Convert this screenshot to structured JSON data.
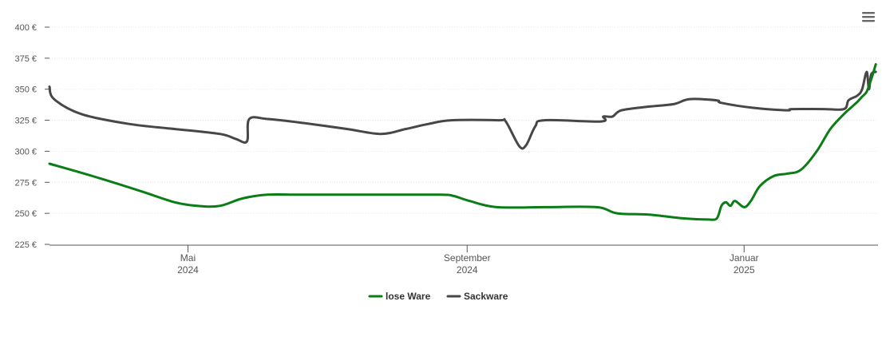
{
  "menu": {
    "icon": "hamburger-menu-icon"
  },
  "chart_data": {
    "type": "line",
    "title": "",
    "xlabel": "",
    "ylabel": "",
    "ylim": [
      225,
      400
    ],
    "yticks": [
      225,
      250,
      275,
      300,
      325,
      350,
      375,
      400
    ],
    "ytick_labels": [
      "225 €",
      "250 €",
      "275 €",
      "300 €",
      "325 €",
      "350 €",
      "375 €",
      "400 €"
    ],
    "xlim": [
      "2024-03-01",
      "2025-02-28"
    ],
    "xticks": [
      {
        "date": "2024-05-01",
        "line1": "Mai",
        "line2": "2024"
      },
      {
        "date": "2024-09-01",
        "line1": "September",
        "line2": "2024"
      },
      {
        "date": "2025-01-01",
        "line1": "Januar",
        "line2": "2025"
      }
    ],
    "grid": true,
    "legend_position": "bottom-center",
    "series": [
      {
        "name": "lose Ware",
        "color": "#0a7d16",
        "points": [
          [
            "2024-03-01",
            290
          ],
          [
            "2024-03-20",
            280
          ],
          [
            "2024-04-10",
            268
          ],
          [
            "2024-04-25",
            259
          ],
          [
            "2024-05-05",
            256
          ],
          [
            "2024-05-15",
            256
          ],
          [
            "2024-05-25",
            262
          ],
          [
            "2024-06-05",
            265
          ],
          [
            "2024-06-20",
            265
          ],
          [
            "2024-07-20",
            265
          ],
          [
            "2024-08-20",
            265
          ],
          [
            "2024-08-26",
            264
          ],
          [
            "2024-09-02",
            260
          ],
          [
            "2024-09-14",
            255
          ],
          [
            "2024-10-05",
            255
          ],
          [
            "2024-10-28",
            255
          ],
          [
            "2024-11-06",
            250
          ],
          [
            "2024-11-20",
            249
          ],
          [
            "2024-12-05",
            246
          ],
          [
            "2024-12-16",
            245
          ],
          [
            "2024-12-20",
            246
          ],
          [
            "2024-12-22",
            256
          ],
          [
            "2024-12-24",
            259
          ],
          [
            "2024-12-26",
            256
          ],
          [
            "2024-12-28",
            260
          ],
          [
            "2025-01-01",
            255
          ],
          [
            "2025-01-04",
            260
          ],
          [
            "2025-01-08",
            272
          ],
          [
            "2025-01-14",
            280
          ],
          [
            "2025-01-20",
            282
          ],
          [
            "2025-01-26",
            285
          ],
          [
            "2025-02-02",
            300
          ],
          [
            "2025-02-08",
            318
          ],
          [
            "2025-02-14",
            330
          ],
          [
            "2025-02-17",
            335
          ],
          [
            "2025-02-20",
            340
          ],
          [
            "2025-02-22",
            344
          ],
          [
            "2025-02-24",
            348
          ],
          [
            "2025-02-26",
            358
          ],
          [
            "2025-02-28",
            370
          ]
        ]
      },
      {
        "name": "Sackware",
        "color": "#474747",
        "points": [
          [
            "2024-03-01",
            352
          ],
          [
            "2024-03-03",
            342
          ],
          [
            "2024-03-15",
            330
          ],
          [
            "2024-04-05",
            322
          ],
          [
            "2024-04-25",
            318
          ],
          [
            "2024-05-15",
            314
          ],
          [
            "2024-05-22",
            310
          ],
          [
            "2024-05-27",
            308
          ],
          [
            "2024-05-28",
            326
          ],
          [
            "2024-06-05",
            326
          ],
          [
            "2024-06-20",
            323
          ],
          [
            "2024-07-10",
            318
          ],
          [
            "2024-07-25",
            314
          ],
          [
            "2024-08-05",
            318
          ],
          [
            "2024-08-15",
            322
          ],
          [
            "2024-08-25",
            325
          ],
          [
            "2024-09-15",
            325
          ],
          [
            "2024-09-18",
            324
          ],
          [
            "2024-09-24",
            304
          ],
          [
            "2024-09-27",
            305
          ],
          [
            "2024-10-01",
            320
          ],
          [
            "2024-10-05",
            325
          ],
          [
            "2024-10-30",
            324
          ],
          [
            "2024-10-31",
            328
          ],
          [
            "2024-11-04",
            328
          ],
          [
            "2024-11-08",
            333
          ],
          [
            "2024-11-20",
            336
          ],
          [
            "2024-12-01",
            338
          ],
          [
            "2024-12-08",
            342
          ],
          [
            "2024-12-20",
            341
          ],
          [
            "2024-12-22",
            339
          ],
          [
            "2025-01-05",
            335
          ],
          [
            "2025-01-20",
            333
          ],
          [
            "2025-01-22",
            334
          ],
          [
            "2025-02-05",
            334
          ],
          [
            "2025-02-14",
            334
          ],
          [
            "2025-02-16",
            341
          ],
          [
            "2025-02-20",
            345
          ],
          [
            "2025-02-22",
            350
          ],
          [
            "2025-02-24",
            364
          ],
          [
            "2025-02-25",
            350
          ],
          [
            "2025-02-26",
            362
          ],
          [
            "2025-02-28",
            364
          ]
        ]
      }
    ]
  }
}
